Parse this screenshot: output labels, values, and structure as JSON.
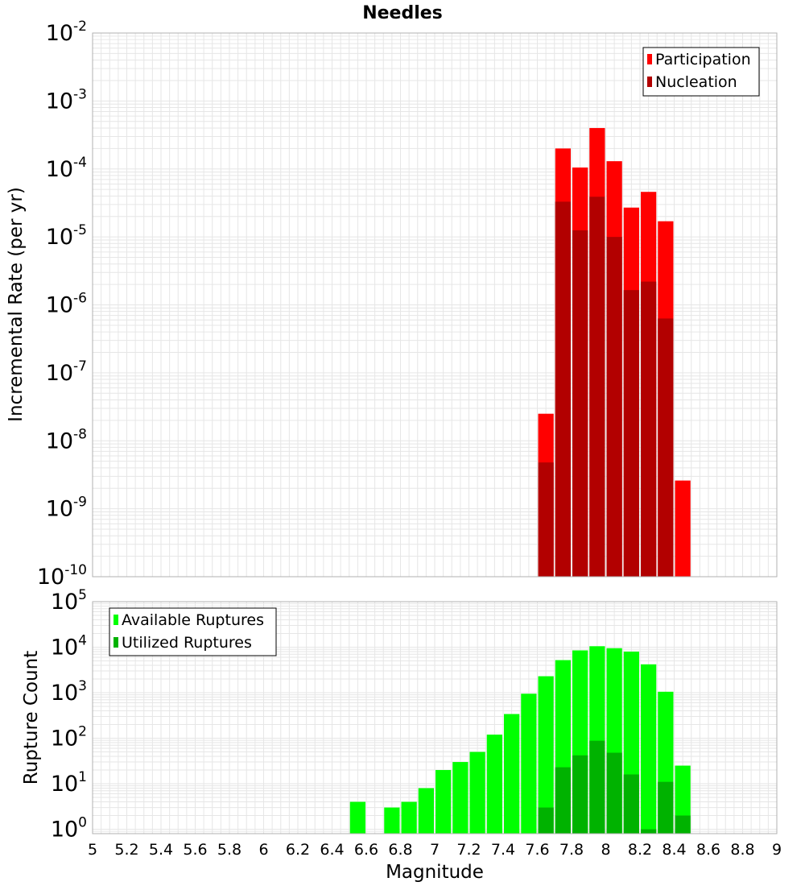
{
  "chart_data": [
    {
      "type": "bar",
      "title": "Needles",
      "ylabel": "Incremental Rate (per yr)",
      "xlabel": "",
      "scale": "log",
      "xlim": [
        5,
        9
      ],
      "ylim": [
        1e-10,
        0.01
      ],
      "y_ticks": [
        {
          "base": "10",
          "exp": "-2",
          "value": 0.01
        },
        {
          "base": "10",
          "exp": "-3",
          "value": 0.001
        },
        {
          "base": "10",
          "exp": "-4",
          "value": 0.0001
        },
        {
          "base": "10",
          "exp": "-5",
          "value": 1e-05
        },
        {
          "base": "10",
          "exp": "-6",
          "value": 1e-06
        },
        {
          "base": "10",
          "exp": "-7",
          "value": 1e-07
        },
        {
          "base": "10",
          "exp": "-8",
          "value": 1e-08
        },
        {
          "base": "10",
          "exp": "-9",
          "value": 1e-09
        },
        {
          "base": "10",
          "exp": "-10",
          "value": 1e-10
        }
      ],
      "legend": "top-right",
      "grid": true,
      "bin_width": 0.1,
      "series": [
        {
          "name": "Participation",
          "color": "#ff0000",
          "x": [
            7.65,
            7.75,
            7.85,
            7.95,
            8.05,
            8.15,
            8.25,
            8.35,
            8.45
          ],
          "values": [
            2.5e-08,
            0.0002,
            0.000105,
            0.0004,
            0.00013,
            2.7e-05,
            4.6e-05,
            1.7e-05,
            2.6e-09
          ]
        },
        {
          "name": "Nucleation",
          "color": "#b20000",
          "x": [
            7.65,
            7.75,
            7.85,
            7.95,
            8.05,
            8.15,
            8.25,
            8.35
          ],
          "values": [
            4.8e-09,
            3.3e-05,
            1.25e-05,
            3.9e-05,
            1e-05,
            1.65e-06,
            2.2e-06,
            6.3e-07
          ]
        }
      ]
    },
    {
      "type": "bar",
      "title": "",
      "ylabel": "Rupture Count",
      "xlabel": "Magnitude",
      "scale": "log",
      "xlim": [
        5,
        9
      ],
      "ylim": [
        0.8,
        100000.0
      ],
      "x_ticks": [
        "5",
        "5.2",
        "5.4",
        "5.6",
        "5.8",
        "6",
        "6.2",
        "6.4",
        "6.6",
        "6.8",
        "7",
        "7.2",
        "7.4",
        "7.6",
        "7.8",
        "8",
        "8.2",
        "8.4",
        "8.6",
        "8.8",
        "9"
      ],
      "y_ticks": [
        {
          "base": "10",
          "exp": "5",
          "value": 100000.0
        },
        {
          "base": "10",
          "exp": "4",
          "value": 10000.0
        },
        {
          "base": "10",
          "exp": "3",
          "value": 1000.0
        },
        {
          "base": "10",
          "exp": "2",
          "value": 100.0
        },
        {
          "base": "10",
          "exp": "1",
          "value": 10.0
        },
        {
          "base": "10",
          "exp": "0",
          "value": 1
        }
      ],
      "legend": "top-left",
      "grid": true,
      "bin_width": 0.1,
      "series": [
        {
          "name": "Available Ruptures",
          "color": "#00ff00",
          "x": [
            6.55,
            6.75,
            6.85,
            6.95,
            7.05,
            7.15,
            7.25,
            7.35,
            7.45,
            7.55,
            7.65,
            7.75,
            7.85,
            7.95,
            8.05,
            8.15,
            8.25,
            8.35,
            8.45
          ],
          "values": [
            4,
            3,
            4,
            8,
            20,
            30,
            50,
            120,
            340,
            950,
            2300,
            5200,
            8500,
            10500,
            9500,
            8000,
            4200,
            1050,
            25
          ]
        },
        {
          "name": "Utilized Ruptures",
          "color": "#00b200",
          "x": [
            7.65,
            7.75,
            7.85,
            7.95,
            8.05,
            8.15,
            8.25,
            8.35,
            8.45
          ],
          "values": [
            3,
            23,
            42,
            88,
            48,
            16,
            1,
            11,
            2
          ]
        }
      ]
    }
  ]
}
